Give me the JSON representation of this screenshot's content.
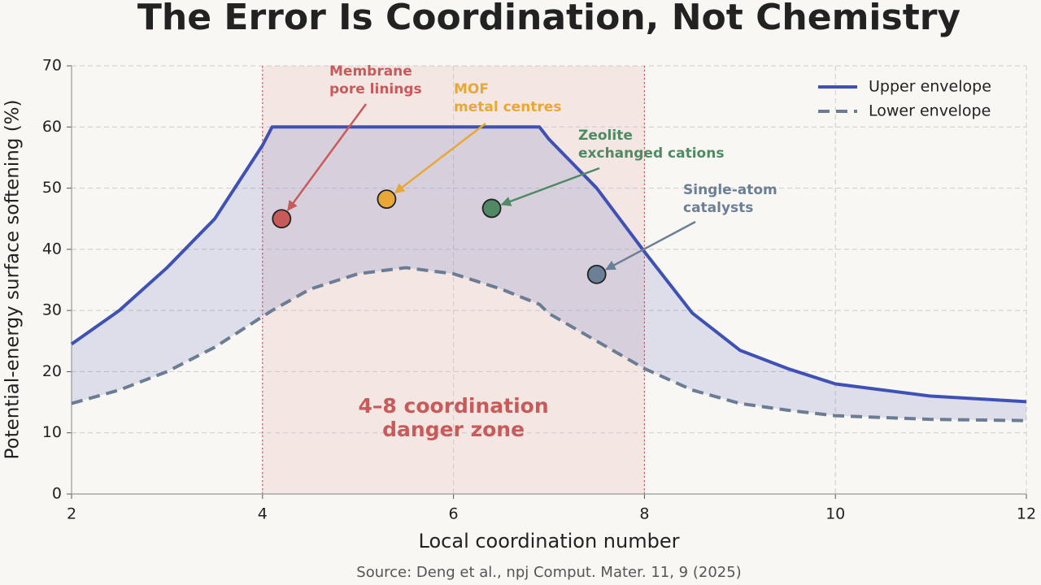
{
  "chart_data": {
    "type": "line",
    "title": "The Error Is Coordination, Not Chemistry",
    "xlabel": "Local coordination number",
    "ylabel": "Potential-energy surface softening (%)",
    "source": "Source: Deng et al., npj Comput. Mater. 11, 9 (2025)",
    "x": [
      2,
      2.5,
      3,
      3.5,
      4,
      4.1,
      4.5,
      5,
      5.5,
      6,
      6.5,
      6.9,
      7,
      7.5,
      8,
      8.5,
      9,
      9.5,
      10,
      11,
      12
    ],
    "series": [
      {
        "name": "Upper envelope",
        "color": "#3f51b5",
        "dash": false,
        "values": [
          24.5,
          30,
          37,
          45,
          57,
          60,
          60,
          60,
          60,
          60,
          60,
          60,
          58,
          50,
          39.6,
          29.6,
          23.5,
          20.5,
          18,
          16,
          15.1
        ]
      },
      {
        "name": "Lower envelope",
        "color": "#6b7d94",
        "dash": true,
        "values": [
          14.8,
          17,
          20,
          24,
          29,
          30,
          33.5,
          36,
          37,
          36,
          33.5,
          31,
          29.5,
          25,
          20.5,
          17,
          14.8,
          13.7,
          12.8,
          12.2,
          12
        ]
      }
    ],
    "band_color": "#3f51b5",
    "zone": {
      "range": [
        4,
        8
      ],
      "color": "#c85a5a",
      "label": [
        "4–8 coordination",
        "danger zone"
      ]
    },
    "points": [
      {
        "label": [
          "Membrane",
          "pore linings"
        ],
        "color": "#c85a5a",
        "x": 4.2,
        "y": 45
      },
      {
        "label": [
          "MOF",
          "metal centres"
        ],
        "color": "#e8a838",
        "x": 5.3,
        "y": 48.2
      },
      {
        "label": [
          "Zeolite",
          "exchanged cations"
        ],
        "color": "#4f8a65",
        "x": 6.4,
        "y": 46.7
      },
      {
        "label": [
          "Single-atom",
          "catalysts"
        ],
        "color": "#6b7f96",
        "x": 7.5,
        "y": 35.9
      }
    ],
    "xlim": [
      2,
      12
    ],
    "ylim": [
      0,
      70
    ],
    "xticks": [
      2,
      4,
      6,
      8,
      10,
      12
    ],
    "yticks": [
      0,
      10,
      20,
      30,
      40,
      50,
      60,
      70
    ],
    "grid": true,
    "legend": "upper-right"
  }
}
